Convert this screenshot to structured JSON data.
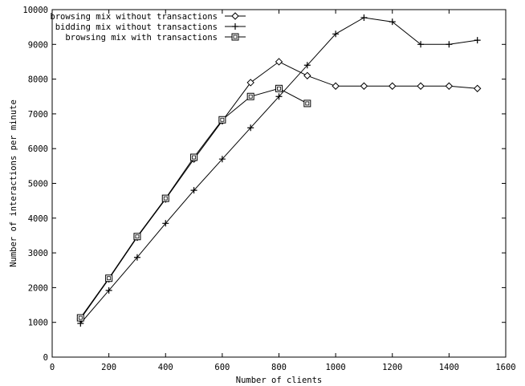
{
  "chart_data": {
    "type": "line",
    "title": "",
    "xlabel": "Number of clients",
    "ylabel": "Number of interactions per minute",
    "xlim": [
      0,
      1600
    ],
    "ylim": [
      0,
      10000
    ],
    "xticks": [
      0,
      200,
      400,
      600,
      800,
      1000,
      1200,
      1400,
      1600
    ],
    "yticks": [
      0,
      1000,
      2000,
      3000,
      4000,
      5000,
      6000,
      7000,
      8000,
      9000,
      10000
    ],
    "grid": false,
    "legend_position": "top-left",
    "series": [
      {
        "name": "browsing mix without transactions",
        "marker": "diamond",
        "color": "#000000",
        "x": [
          100,
          200,
          300,
          400,
          500,
          600,
          700,
          800,
          900,
          1000,
          1100,
          1200,
          1300,
          1400,
          1500
        ],
        "y": [
          1100,
          2250,
          3450,
          4550,
          5700,
          6800,
          7900,
          8500,
          8100,
          7800,
          7800,
          7800,
          7800,
          7800,
          7730
        ]
      },
      {
        "name": "bidding mix without transactions",
        "marker": "plus",
        "color": "#000000",
        "x": [
          100,
          200,
          300,
          400,
          500,
          600,
          700,
          800,
          900,
          1000,
          1100,
          1200,
          1300,
          1400,
          1500
        ],
        "y": [
          970,
          1920,
          2870,
          3850,
          4800,
          5700,
          6600,
          7500,
          8400,
          9300,
          9770,
          9650,
          9000,
          9000,
          9120
        ]
      },
      {
        "name": "browsing mix with transactions",
        "marker": "square",
        "color": "#000000",
        "x": [
          100,
          200,
          300,
          400,
          500,
          600,
          700,
          800,
          900
        ],
        "y": [
          1130,
          2270,
          3470,
          4570,
          5750,
          6830,
          7500,
          7730,
          7300
        ]
      }
    ]
  }
}
